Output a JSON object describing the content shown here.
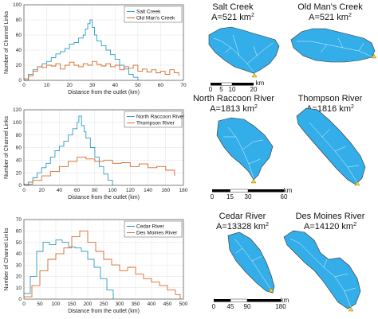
{
  "colors": {
    "series_a": "#2a9dc4",
    "series_b": "#d9692a",
    "basin_fill": "#33aee8",
    "basin_edge": "#333333",
    "outlet": "#ffd21f",
    "grid": "#e2e2e2"
  },
  "chart_data": [
    {
      "type": "line",
      "xlabel": "Distance from the outlet (km)",
      "ylabel": "Number of Channel Links",
      "xlim": [
        0,
        70
      ],
      "ylim": [
        0,
        100
      ],
      "xticks": [
        "0",
        "10",
        "20",
        "30",
        "40",
        "50",
        "60",
        "70"
      ],
      "yticks": [
        "0",
        "20",
        "40",
        "60",
        "80",
        "100"
      ],
      "grid": true,
      "legend_position": "top-right",
      "series": [
        {
          "name": "Salt Creek",
          "x": [
            0,
            2,
            4,
            6,
            8,
            10,
            12,
            14,
            16,
            18,
            20,
            22,
            24,
            26,
            27,
            28,
            29,
            30,
            31,
            32,
            34,
            36,
            38,
            40,
            42,
            44,
            46,
            48,
            50
          ],
          "values": [
            0,
            8,
            14,
            18,
            22,
            25,
            30,
            35,
            38,
            42,
            48,
            50,
            56,
            60,
            68,
            75,
            80,
            70,
            60,
            52,
            46,
            40,
            34,
            28,
            20,
            15,
            8,
            4,
            0
          ]
        },
        {
          "name": "Old Man's Creek",
          "x": [
            0,
            2,
            4,
            6,
            8,
            10,
            12,
            14,
            16,
            18,
            20,
            22,
            24,
            26,
            28,
            30,
            32,
            34,
            36,
            38,
            40,
            42,
            44,
            46,
            48,
            50,
            52,
            54,
            56,
            58,
            60,
            62,
            64,
            66,
            68
          ],
          "values": [
            2,
            6,
            12,
            18,
            17,
            20,
            19,
            22,
            15,
            20,
            24,
            20,
            18,
            22,
            20,
            25,
            21,
            19,
            22,
            18,
            20,
            14,
            18,
            16,
            20,
            12,
            15,
            11,
            14,
            10,
            12,
            8,
            14,
            10,
            6
          ]
        }
      ]
    },
    {
      "type": "line",
      "xlabel": "Distance from the outlet (km)",
      "ylabel": "Number of Channel Links",
      "xlim": [
        0,
        180
      ],
      "ylim": [
        0,
        120
      ],
      "xticks": [
        "0",
        "20",
        "40",
        "60",
        "80",
        "100",
        "120",
        "140",
        "160",
        "180"
      ],
      "yticks": [
        "0",
        "20",
        "40",
        "60",
        "80",
        "100",
        "120"
      ],
      "grid": true,
      "legend_position": "top-right",
      "series": [
        {
          "name": "North Raccoon River",
          "x": [
            0,
            5,
            10,
            15,
            20,
            25,
            30,
            35,
            40,
            45,
            50,
            55,
            60,
            62,
            65,
            68,
            70,
            75,
            80,
            85,
            90,
            95,
            100
          ],
          "values": [
            0,
            5,
            12,
            20,
            28,
            35,
            45,
            55,
            62,
            70,
            80,
            90,
            100,
            110,
            95,
            85,
            75,
            60,
            45,
            30,
            18,
            8,
            0
          ]
        },
        {
          "name": "Thompson River",
          "x": [
            0,
            10,
            20,
            30,
            40,
            50,
            60,
            70,
            80,
            90,
            100,
            110,
            120,
            130,
            140,
            150,
            160,
            170
          ],
          "values": [
            2,
            8,
            15,
            22,
            30,
            38,
            45,
            42,
            38,
            40,
            35,
            36,
            30,
            34,
            28,
            30,
            24,
            15
          ]
        }
      ]
    },
    {
      "type": "line",
      "xlabel": "Distance from the outlet (km)",
      "ylabel": "Number of Channel Links",
      "xlim": [
        0,
        500
      ],
      "ylim": [
        0,
        70
      ],
      "xticks": [
        "0",
        "50",
        "100",
        "150",
        "200",
        "250",
        "300",
        "350",
        "400",
        "450",
        "500"
      ],
      "yticks": [
        "0",
        "10",
        "20",
        "30",
        "40",
        "50",
        "60",
        "70"
      ],
      "grid": true,
      "legend_position": "top-right",
      "series": [
        {
          "name": "Cedar River",
          "x": [
            0,
            20,
            40,
            60,
            80,
            100,
            120,
            140,
            160,
            180,
            200,
            220,
            240,
            260,
            280
          ],
          "values": [
            5,
            20,
            42,
            50,
            48,
            52,
            50,
            46,
            45,
            42,
            35,
            28,
            18,
            8,
            0
          ]
        },
        {
          "name": "Des Moines River",
          "x": [
            0,
            25,
            50,
            75,
            100,
            125,
            150,
            175,
            200,
            225,
            250,
            275,
            300,
            325,
            350,
            375,
            400,
            425,
            450,
            475,
            490
          ],
          "values": [
            2,
            12,
            25,
            35,
            40,
            45,
            55,
            60,
            50,
            42,
            35,
            30,
            25,
            28,
            22,
            18,
            15,
            12,
            8,
            4,
            0
          ]
        }
      ]
    }
  ],
  "maps": [
    {
      "title": "Salt Creek",
      "area": "A=521 km",
      "superscript": "2",
      "scale": {
        "labels": [
          "0",
          "5",
          "10",
          "20"
        ],
        "unit": "km"
      }
    },
    {
      "title": "Old Man's Creek",
      "area": "A=521 km",
      "superscript": "2"
    },
    {
      "title": "North Raccoon River",
      "area": "A=1813 km",
      "superscript": "2",
      "scale": {
        "labels": [
          "0",
          "15",
          "30",
          "60"
        ],
        "unit": "km"
      }
    },
    {
      "title": "Thompson River",
      "area": "A=1816 km",
      "superscript": "2"
    },
    {
      "title": "Cedar River",
      "area": "A=13328 km",
      "superscript": "2",
      "scale": {
        "labels": [
          "0",
          "45",
          "90",
          "180"
        ],
        "unit": "km"
      }
    },
    {
      "title": "Des Moines River",
      "area": "A=14120 km",
      "superscript": "2"
    }
  ]
}
